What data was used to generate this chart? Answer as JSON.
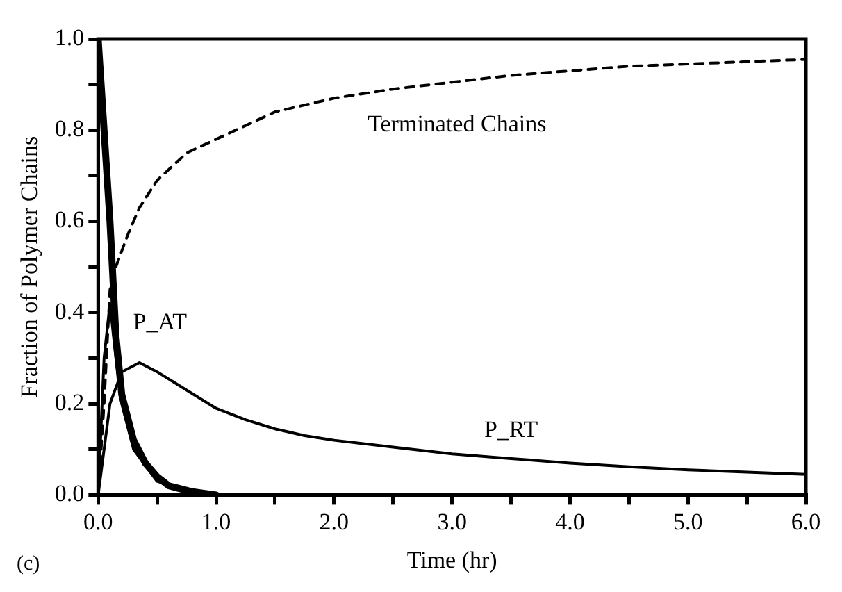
{
  "chart_data": {
    "type": "line",
    "xlabel": "Time (hr)",
    "ylabel": "Fraction of Polymer Chains",
    "xlim": [
      0,
      6
    ],
    "ylim": [
      0,
      1
    ],
    "xticks": [
      {
        "value": 0,
        "label": "0.0"
      },
      {
        "value": 0.5,
        "label": null
      },
      {
        "value": 1,
        "label": "1.0"
      },
      {
        "value": 1.5,
        "label": null
      },
      {
        "value": 2,
        "label": "2.0"
      },
      {
        "value": 2.5,
        "label": null
      },
      {
        "value": 3,
        "label": "3.0"
      },
      {
        "value": 3.5,
        "label": null
      },
      {
        "value": 4,
        "label": "4.0"
      },
      {
        "value": 4.5,
        "label": null
      },
      {
        "value": 5,
        "label": "5.0"
      },
      {
        "value": 5.5,
        "label": null
      },
      {
        "value": 6,
        "label": "6.0"
      }
    ],
    "yticks": [
      {
        "value": 0,
        "label": "0.0"
      },
      {
        "value": 0.1,
        "label": null
      },
      {
        "value": 0.2,
        "label": "0.2"
      },
      {
        "value": 0.3,
        "label": null
      },
      {
        "value": 0.4,
        "label": "0.4"
      },
      {
        "value": 0.5,
        "label": null
      },
      {
        "value": 0.6,
        "label": "0.6"
      },
      {
        "value": 0.7,
        "label": null
      },
      {
        "value": 0.8,
        "label": "0.8"
      },
      {
        "value": 0.9,
        "label": null
      },
      {
        "value": 1,
        "label": "1.0"
      }
    ],
    "grid": false,
    "legend": false,
    "marker": "none",
    "series": [
      {
        "color": "#000000",
        "line_style": "solid",
        "x": [
          0,
          0.1,
          0.15,
          0.2,
          0.3,
          0.4,
          0.5,
          0.6,
          0.8,
          1.0
        ],
        "values": [
          1,
          0.6,
          0.35,
          0.22,
          0.12,
          0.07,
          0.04,
          0.02,
          0.007,
          0
        ]
      },
      {
        "name": "P_AT",
        "color": "#000000",
        "line_style": "solid",
        "x": [
          0,
          0.05,
          0.1,
          0.15,
          0.2,
          0.3,
          0.5,
          0.8,
          1.0
        ],
        "values": [
          0,
          0.3,
          0.42,
          0.3,
          0.2,
          0.1,
          0.03,
          0.005,
          0
        ]
      },
      {
        "name": "P_RT",
        "color": "#000000",
        "line_style": "solid",
        "x": [
          0,
          0.1,
          0.2,
          0.35,
          0.5,
          0.75,
          1,
          1.25,
          1.5,
          1.75,
          2,
          2.5,
          3,
          3.5,
          4,
          4.5,
          5,
          5.5,
          6
        ],
        "values": [
          0,
          0.2,
          0.27,
          0.29,
          0.27,
          0.23,
          0.19,
          0.165,
          0.145,
          0.13,
          0.12,
          0.105,
          0.09,
          0.08,
          0.07,
          0.062,
          0.055,
          0.05,
          0.045
        ]
      },
      {
        "name": "Terminated Chains",
        "color": "#000000",
        "line_style": "dashed",
        "x": [
          0,
          0.05,
          0.1,
          0.15,
          0.25,
          0.35,
          0.5,
          0.75,
          1,
          1.25,
          1.5,
          2,
          2.5,
          3,
          3.5,
          4,
          4.5,
          5,
          5.5,
          6
        ],
        "values": [
          0,
          0.2,
          0.45,
          0.5,
          0.57,
          0.63,
          0.69,
          0.75,
          0.78,
          0.81,
          0.84,
          0.87,
          0.89,
          0.905,
          0.92,
          0.93,
          0.94,
          0.945,
          0.95,
          0.955
        ]
      }
    ],
    "annotations": [
      "(c)"
    ]
  }
}
